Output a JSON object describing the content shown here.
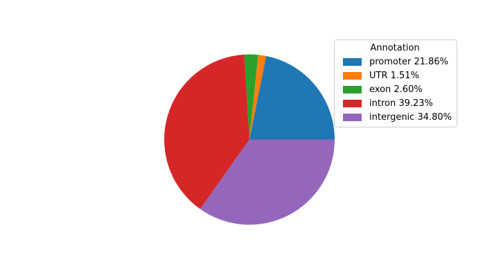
{
  "figure": {
    "background": "#ffffff"
  },
  "chart_data": {
    "type": "pie",
    "legend_title": "Annotation",
    "legend_position": "upper right",
    "start_angle_deg": 0,
    "direction": "counterclockwise",
    "slices": [
      {
        "label": "promoter",
        "value": 21.86,
        "percent_label": "promoter 21.86%",
        "color": "#1f77b4"
      },
      {
        "label": "UTR",
        "value": 1.51,
        "percent_label": "UTR 1.51%",
        "color": "#ff7f0e"
      },
      {
        "label": "exon",
        "value": 2.6,
        "percent_label": "exon 2.60%",
        "color": "#2ca02c"
      },
      {
        "label": "intron",
        "value": 39.23,
        "percent_label": "intron 39.23%",
        "color": "#d62728"
      },
      {
        "label": "intergenic",
        "value": 34.8,
        "percent_label": "intergenic 34.80%",
        "color": "#9467bd"
      }
    ]
  }
}
